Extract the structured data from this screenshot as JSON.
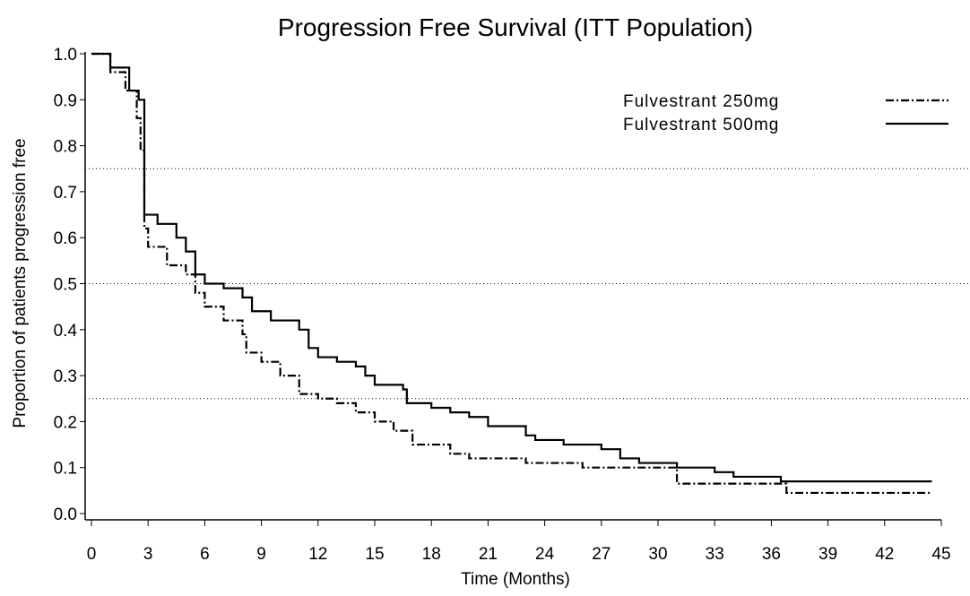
{
  "chart_data": {
    "type": "step",
    "title": "Progression Free Survival (ITT Population)",
    "x_label": "Time (Months)",
    "y_label": "Proportion of patients progression free",
    "xlim": [
      0,
      45
    ],
    "ylim": [
      0,
      1
    ],
    "xticks": [
      0,
      3,
      6,
      9,
      12,
      15,
      18,
      21,
      24,
      27,
      30,
      33,
      36,
      39,
      42,
      45
    ],
    "yticks": [
      {
        "value": 0,
        "label": "0.0"
      },
      0.1,
      0.2,
      0.3,
      0.4,
      0.5,
      0.6,
      0.7,
      0.8,
      0.9,
      {
        "value": 1,
        "label": "1.0"
      }
    ],
    "reference_lines": [
      0.75,
      0.5,
      0.25
    ],
    "legend": "top-right",
    "series": [
      {
        "name": "Fulvestrant 250mg",
        "color": "#000000",
        "line_style": "dashdot",
        "x": [
          0,
          1,
          1.8,
          2.4,
          2.6,
          2.8,
          3,
          4,
          5,
          5.5,
          6,
          7,
          8,
          8.2,
          9,
          10,
          11,
          12,
          13,
          14,
          15,
          16,
          17,
          19,
          20,
          23,
          26,
          31,
          36.8,
          44.5
        ],
        "values": [
          1.0,
          0.96,
          0.92,
          0.86,
          0.79,
          0.62,
          0.58,
          0.54,
          0.52,
          0.48,
          0.45,
          0.42,
          0.39,
          0.35,
          0.33,
          0.3,
          0.26,
          0.25,
          0.24,
          0.22,
          0.2,
          0.18,
          0.15,
          0.13,
          0.12,
          0.11,
          0.1,
          0.065,
          0.045,
          0.045
        ]
      },
      {
        "name": "Fulvestrant 500mg",
        "color": "#000000",
        "line_style": "solid",
        "x": [
          0,
          1,
          2,
          2.5,
          2.8,
          3.5,
          4.5,
          5,
          5.5,
          6,
          7,
          8,
          8.5,
          9.5,
          11,
          11.5,
          12,
          13,
          14,
          14.5,
          15,
          16.5,
          16.7,
          18,
          19,
          20,
          21,
          23,
          23.5,
          25,
          27,
          28,
          29,
          31,
          33,
          34,
          36.5,
          44.5
        ],
        "values": [
          1.0,
          0.97,
          0.92,
          0.9,
          0.65,
          0.63,
          0.6,
          0.57,
          0.52,
          0.5,
          0.49,
          0.47,
          0.44,
          0.42,
          0.4,
          0.36,
          0.34,
          0.33,
          0.32,
          0.3,
          0.28,
          0.27,
          0.24,
          0.23,
          0.22,
          0.21,
          0.19,
          0.17,
          0.16,
          0.15,
          0.14,
          0.12,
          0.11,
          0.1,
          0.09,
          0.08,
          0.07,
          0.07
        ]
      }
    ]
  }
}
